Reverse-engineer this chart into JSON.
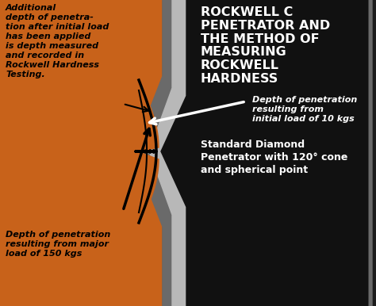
{
  "bg_color": "#c0c0c0",
  "orange_color": "#c8621a",
  "dark_bg_color": "#1c1c1c",
  "gray_dark": "#6a6a6a",
  "gray_mid": "#909090",
  "gray_light": "#b8b8b8",
  "title_text": "ROCKWELL C\nPENETRATOR AND\nTHE METHOD OF\nMEASURING\nROCKWELL\nHARDNESS",
  "subtitle_text": "Standard Diamond\nPenetrator with 120° cone\nand spherical point",
  "annotation_top": "Additional\ndepth of penetra-\ntion after initial load\nhas been applied\nis depth measured\nand recorded in\nRockwell Hardness\nTesting.",
  "annotation_bottom_left": "Depth of penetration\nresulting from major\nload of 150 kgs",
  "annotation_bottom_right": "Depth of penetration\nresulting from\ninitial load of 10 kgs",
  "title_fontsize": 11.5,
  "subtitle_fontsize": 9,
  "annot_fontsize": 8
}
